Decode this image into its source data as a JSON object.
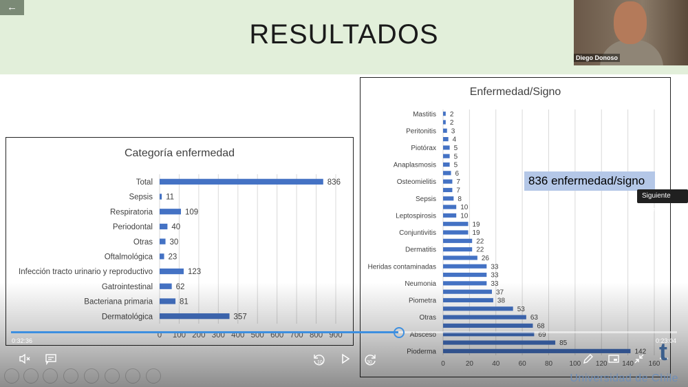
{
  "slide": {
    "title": "RESULTADOS"
  },
  "webcam": {
    "name": "Diego Donoso"
  },
  "callout": "836 enfermedad/signo",
  "tooltip": "Siguiente vídeo",
  "player": {
    "elapsed": "0:32:36",
    "remaining": "0:23:04",
    "progress": 0.582,
    "skip_back": "10",
    "skip_fwd": "30"
  },
  "logo_text": "Universidad de Chile",
  "colors": {
    "bar": "#4472c4",
    "banner": "#e2efda",
    "accent": "#3d8fe0"
  },
  "icons": [
    "back-arrow-icon",
    "mute-icon",
    "captions-icon",
    "rewind-10-icon",
    "play-icon",
    "forward-30-icon",
    "pen-icon",
    "miniplayer-icon",
    "exit-fullscreen-icon",
    "more-icon"
  ],
  "chart_data": [
    {
      "type": "bar",
      "orientation": "horizontal",
      "title": "Categoría enfermedad",
      "categories": [
        "Total",
        "Sepsis",
        "Respiratoria",
        "Periodontal",
        "Otras",
        "Oftalmológica",
        "Infección tracto urinario y reproductivo",
        "Gatrointestinal",
        "Bacteriana primaria",
        "Dermatológica"
      ],
      "values": [
        836,
        11,
        109,
        40,
        30,
        23,
        123,
        62,
        81,
        357
      ],
      "xlim": [
        0,
        900
      ],
      "xticks": [
        0,
        100,
        200,
        300,
        400,
        500,
        600,
        700,
        800,
        900
      ],
      "grid": true
    },
    {
      "type": "bar",
      "orientation": "horizontal",
      "title": "Enfermedad/Signo",
      "categories": [
        "Mastitis",
        "",
        "Peritonitis",
        "",
        "Piotórax",
        "",
        "Anaplasmosis",
        "",
        "Osteomielitis",
        "",
        "Sepsis",
        "",
        "Leptospirosis",
        "",
        "Conjuntivitis",
        "",
        "Dermatitis",
        "",
        "Heridas contaminadas",
        "",
        "Neumonia",
        "",
        "Piometra",
        "",
        "Otras",
        "",
        "Absceso",
        "",
        "Pioderma"
      ],
      "values": [
        2,
        2,
        3,
        4,
        5,
        5,
        5,
        6,
        7,
        7,
        8,
        10,
        10,
        19,
        19,
        22,
        22,
        26,
        33,
        33,
        33,
        37,
        38,
        53,
        63,
        68,
        69,
        85,
        142
      ],
      "xlim": [
        0,
        160
      ],
      "xticks": [
        0,
        20,
        40,
        60,
        80,
        100,
        120,
        140,
        160
      ],
      "grid": true
    }
  ]
}
